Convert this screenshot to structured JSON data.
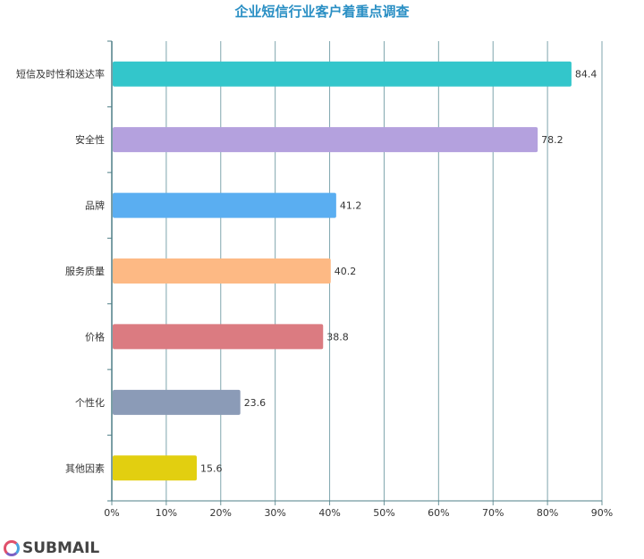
{
  "chart_data": {
    "type": "bar",
    "orientation": "horizontal",
    "title": "企业短信行业客户着重点调查",
    "categories": [
      "短信及时性和送达率",
      "安全性",
      "品牌",
      "服务质量",
      "价格",
      "个性化",
      "其他因素"
    ],
    "values": [
      84.4,
      78.2,
      41.2,
      40.2,
      38.8,
      23.6,
      15.6
    ],
    "colors": [
      "#33c6cb",
      "#b4a1de",
      "#5aaef1",
      "#fdb984",
      "#db7b81",
      "#8b9bb7",
      "#e2cf10"
    ],
    "xlim": [
      0,
      90
    ],
    "xticks": [
      "0%",
      "10%",
      "20%",
      "30%",
      "40%",
      "50%",
      "60%",
      "70%",
      "80%",
      "90%"
    ],
    "grid": true
  },
  "logo": {
    "text": "SUBMAIL"
  }
}
